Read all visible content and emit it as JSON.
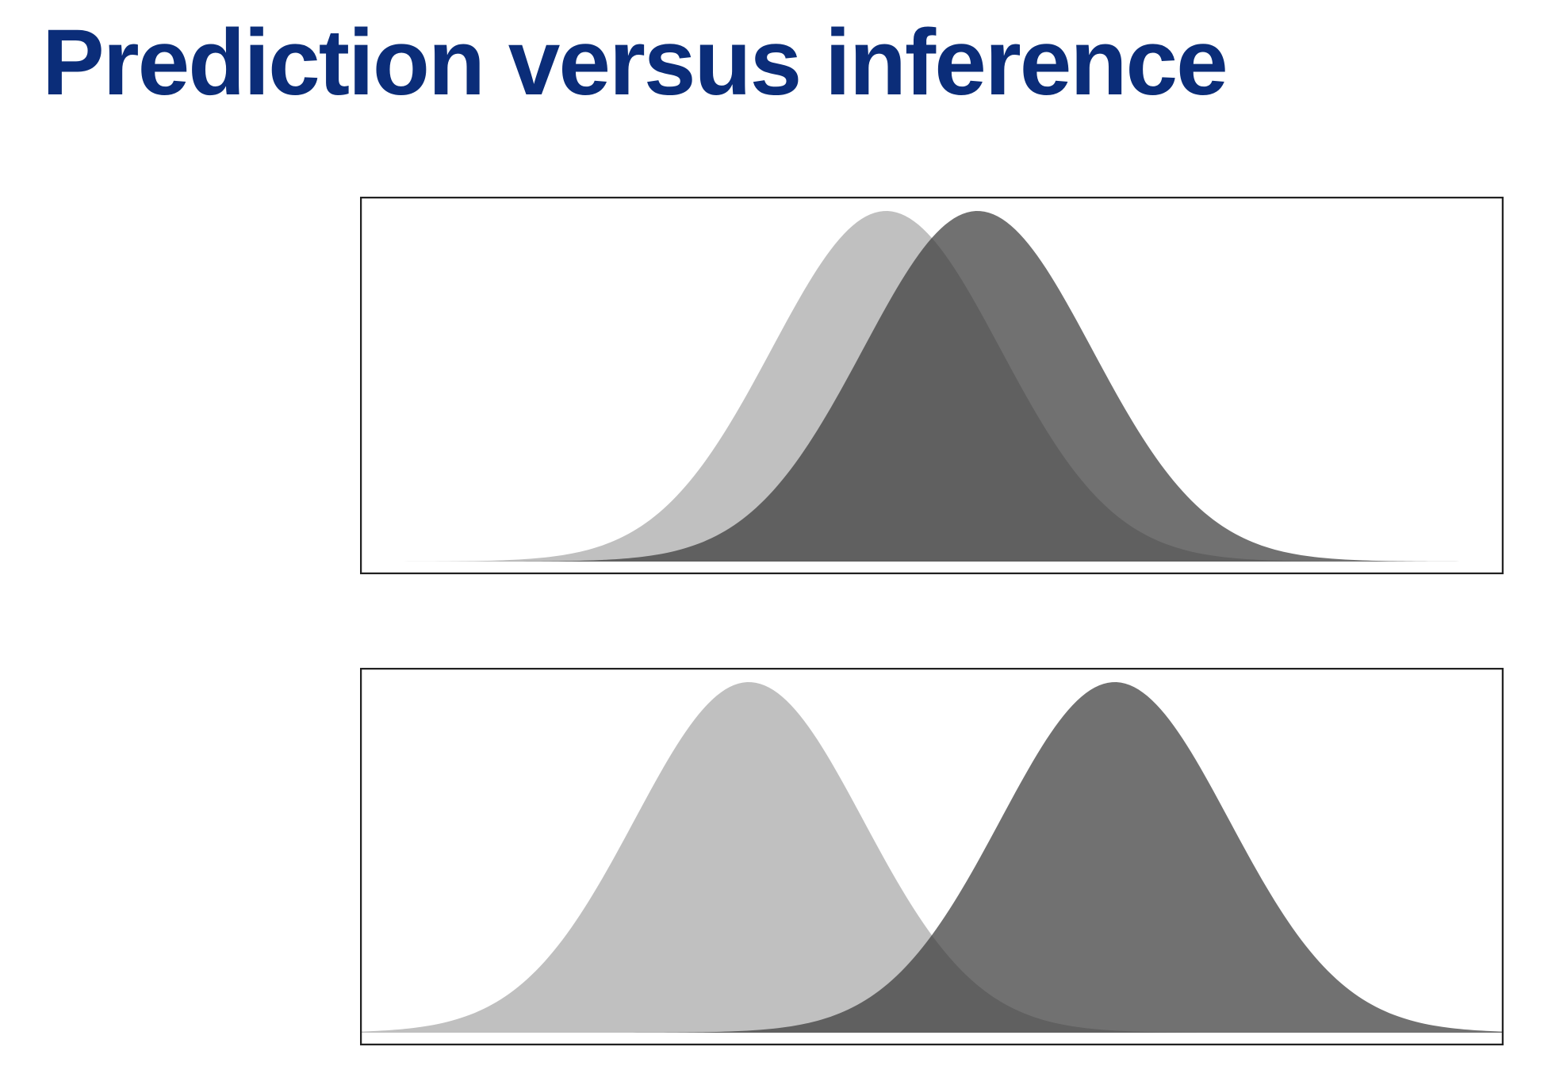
{
  "title": "Prediction versus inference",
  "colors": {
    "title": "#0b2d79",
    "frame": "#222222",
    "light_curve": "#9a9a9a",
    "dark_curve": "#3a3a3a"
  },
  "chart_data": [
    {
      "type": "area",
      "title": "",
      "xlabel": "",
      "ylabel": "",
      "xlim": [
        -5,
        5
      ],
      "ylim": [
        0,
        1
      ],
      "grid": false,
      "legend": "none",
      "series": [
        {
          "mean": -0.4,
          "sd": 1.0,
          "peak": 1.0,
          "color": "#9a9a9a",
          "opacity": 0.62
        },
        {
          "mean": 0.4,
          "sd": 1.0,
          "peak": 1.0,
          "color": "#3a3a3a",
          "opacity": 0.72
        }
      ]
    },
    {
      "type": "area",
      "title": "",
      "xlabel": "",
      "ylabel": "",
      "xlim": [
        -5,
        5
      ],
      "ylim": [
        0,
        1
      ],
      "grid": false,
      "legend": "none",
      "series": [
        {
          "mean": -1.6,
          "sd": 1.0,
          "peak": 1.0,
          "color": "#9a9a9a",
          "opacity": 0.62
        },
        {
          "mean": 1.6,
          "sd": 1.0,
          "peak": 1.0,
          "color": "#3a3a3a",
          "opacity": 0.72
        }
      ]
    }
  ]
}
